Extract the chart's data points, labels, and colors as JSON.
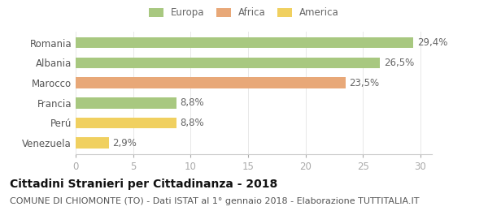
{
  "categories": [
    "Romania",
    "Albania",
    "Marocco",
    "Francia",
    "Perú",
    "Venezuela"
  ],
  "values": [
    29.4,
    26.5,
    23.5,
    8.8,
    8.8,
    2.9
  ],
  "labels": [
    "29,4%",
    "26,5%",
    "23,5%",
    "8,8%",
    "8,8%",
    "2,9%"
  ],
  "colors": [
    "#a8c880",
    "#a8c880",
    "#e8a878",
    "#a8c880",
    "#f0d060",
    "#f0d060"
  ],
  "legend": [
    {
      "label": "Europa",
      "color": "#a8c880"
    },
    {
      "label": "Africa",
      "color": "#e8a878"
    },
    {
      "label": "America",
      "color": "#f0d060"
    }
  ],
  "xlim": [
    0,
    31
  ],
  "xticks": [
    0,
    5,
    10,
    15,
    20,
    25,
    30
  ],
  "title": "Cittadini Stranieri per Cittadinanza - 2018",
  "subtitle": "COMUNE DI CHIOMONTE (TO) - Dati ISTAT al 1° gennaio 2018 - Elaborazione TUTTITALIA.IT",
  "bar_height": 0.55,
  "background_color": "#ffffff",
  "label_fontsize": 8.5,
  "tick_fontsize": 8.5,
  "title_fontsize": 10,
  "subtitle_fontsize": 8
}
